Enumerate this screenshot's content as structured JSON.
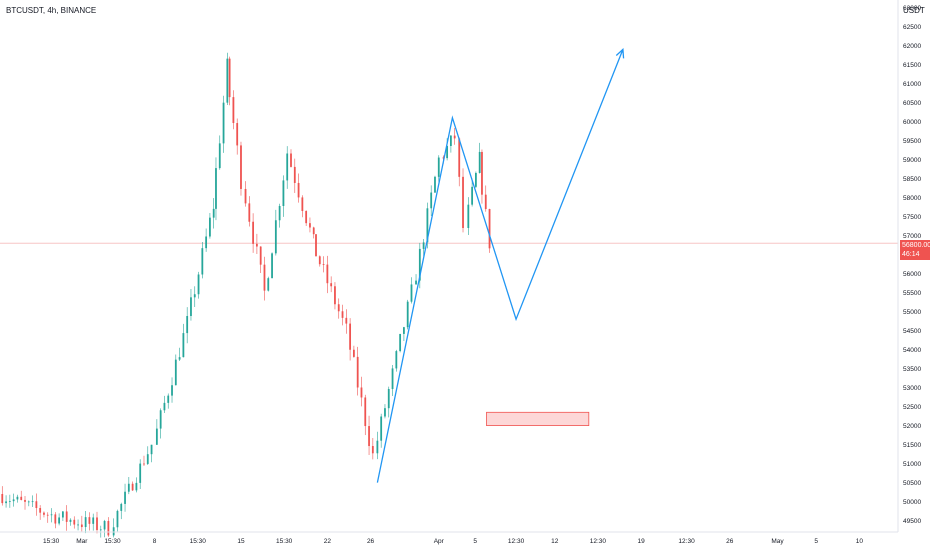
{
  "header": {
    "symbol": "BTCUSDT, 4h, BINANCE",
    "currency": "USDT"
  },
  "last_price": {
    "value": "56800.00",
    "countdown": "46:14",
    "price": 56800
  },
  "colors": {
    "up": "#26a69a",
    "down": "#ef5350",
    "drawing": "#2196f3",
    "zone_fill": "#fdd7d7",
    "zone_border": "#ef5350",
    "axis_text": "#131722",
    "price_line": "#f7c6c6"
  },
  "chart_data": {
    "type": "candlestick",
    "symbol": "BTCUSDT",
    "timeframe": "4h",
    "exchange": "BINANCE",
    "ylim": [
      49200,
      63200
    ],
    "y_ticks": [
      49500,
      50000,
      50500,
      51000,
      51500,
      52000,
      52500,
      53000,
      53500,
      54000,
      54500,
      55000,
      55500,
      56000,
      56500,
      57000,
      57500,
      58000,
      58500,
      59000,
      59500,
      60000,
      60500,
      61000,
      61500,
      62000,
      62500,
      63000
    ],
    "x_labels": [
      "15:30",
      "Mar",
      "15:30",
      "8",
      "15:30",
      "15",
      "15:30",
      "22",
      "26",
      "Apr",
      "5",
      "12:30",
      "12",
      "12:30",
      "19",
      "12:30",
      "26",
      "May",
      "5",
      "10"
    ],
    "x_label_days": [
      -1.35,
      0,
      1.35,
      3.2,
      5.1,
      7,
      8.9,
      10.8,
      12.7,
      15.7,
      17.3,
      19.1,
      20.8,
      22.7,
      24.6,
      26.6,
      28.5,
      30.6,
      32.3,
      34.2
    ],
    "x_range_days": [
      -3.6,
      35.9
    ],
    "candle_segments": [
      {
        "from_day": -3.5,
        "to_day": -1.0,
        "start": 50200,
        "end": 49600,
        "vol": 250
      },
      {
        "from_day": -1.0,
        "to_day": 1.4,
        "start": 49600,
        "end": 49300,
        "vol": 280
      },
      {
        "from_day": 1.4,
        "to_day": 3.3,
        "start": 49300,
        "end": 51500,
        "vol": 260
      },
      {
        "from_day": 3.3,
        "to_day": 4.8,
        "start": 51500,
        "end": 54700,
        "vol": 300
      },
      {
        "from_day": 4.8,
        "to_day": 5.9,
        "start": 54700,
        "end": 57800,
        "vol": 320
      },
      {
        "from_day": 5.9,
        "to_day": 6.5,
        "start": 57800,
        "end": 61400,
        "vol": 360
      },
      {
        "from_day": 6.5,
        "to_day": 7.2,
        "start": 61400,
        "end": 58500,
        "vol": 360
      },
      {
        "from_day": 7.2,
        "to_day": 8.2,
        "start": 58500,
        "end": 55500,
        "vol": 320
      },
      {
        "from_day": 8.2,
        "to_day": 9.2,
        "start": 55500,
        "end": 59200,
        "vol": 320
      },
      {
        "from_day": 9.2,
        "to_day": 10.3,
        "start": 59200,
        "end": 56800,
        "vol": 300
      },
      {
        "from_day": 10.3,
        "to_day": 11.8,
        "start": 56800,
        "end": 54500,
        "vol": 300
      },
      {
        "from_day": 11.8,
        "to_day": 13.0,
        "start": 54500,
        "end": 51200,
        "vol": 330
      },
      {
        "from_day": 13.0,
        "to_day": 14.7,
        "start": 51200,
        "end": 55500,
        "vol": 300
      },
      {
        "from_day": 14.7,
        "to_day": 15.9,
        "start": 55500,
        "end": 59000,
        "vol": 300
      },
      {
        "from_day": 15.9,
        "to_day": 16.6,
        "start": 59000,
        "end": 59600,
        "vol": 280
      },
      {
        "from_day": 16.6,
        "to_day": 17.0,
        "start": 59600,
        "end": 57200,
        "vol": 300
      },
      {
        "from_day": 17.0,
        "to_day": 17.6,
        "start": 57200,
        "end": 59000,
        "vol": 280
      },
      {
        "from_day": 17.6,
        "to_day": 18.1,
        "start": 59000,
        "end": 56800,
        "vol": 280
      }
    ],
    "drawings": [
      {
        "type": "polyline-arrow",
        "points": [
          [
            13.0,
            50500
          ],
          [
            16.3,
            60100
          ],
          [
            19.1,
            54800
          ],
          [
            23.8,
            61900
          ]
        ]
      },
      {
        "type": "rectangle",
        "x": [
          17.8,
          22.3
        ],
        "y": [
          52000,
          52350
        ]
      }
    ]
  }
}
